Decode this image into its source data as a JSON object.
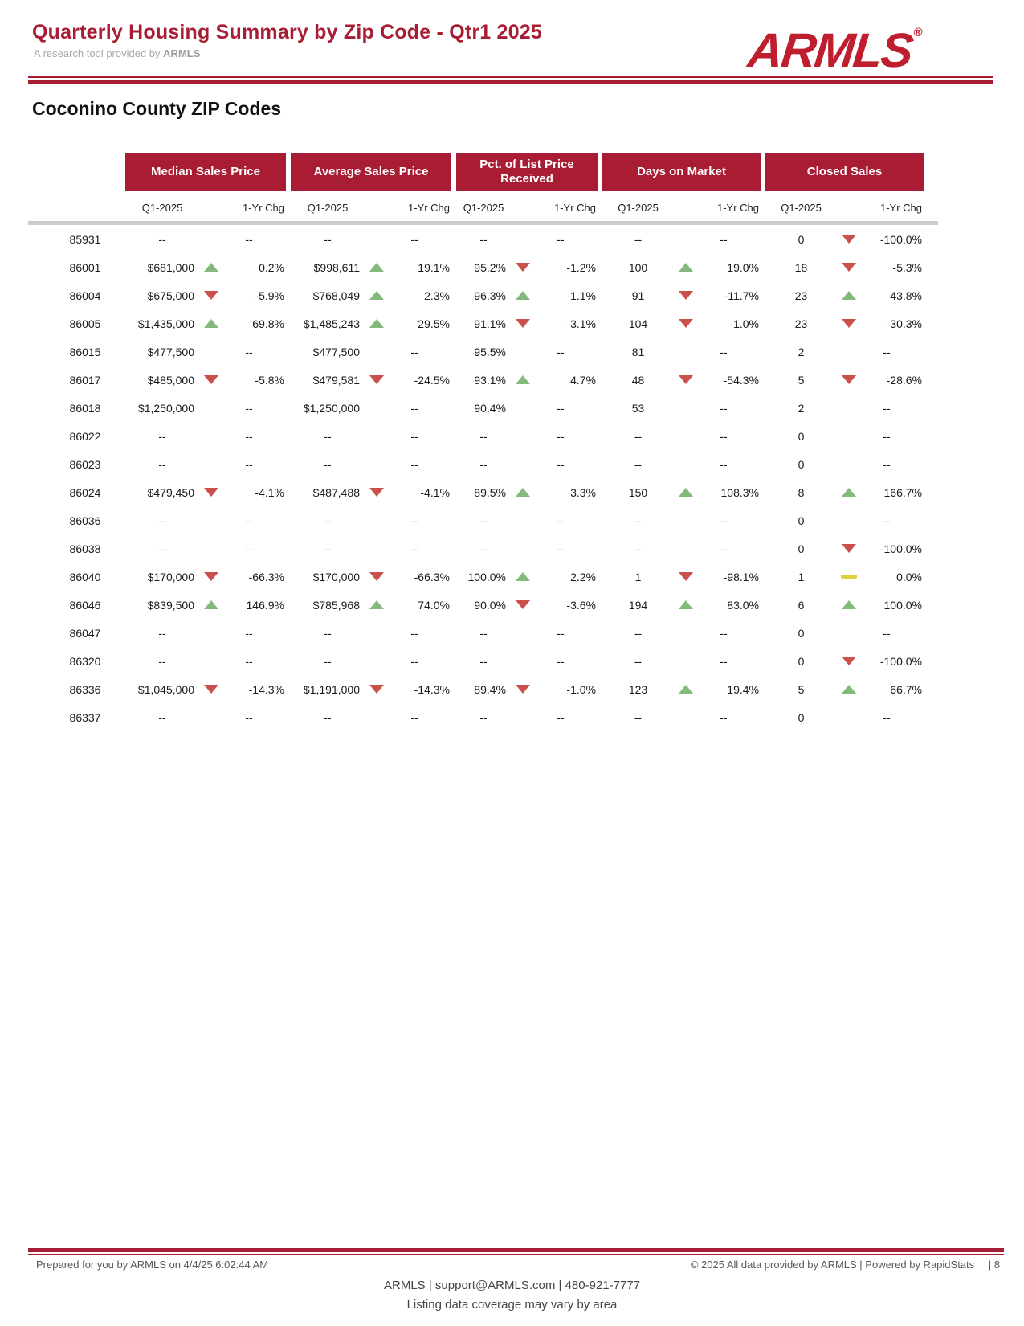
{
  "header": {
    "title": "Quarterly Housing Summary by Zip Code - Qtr1 2025",
    "subtitle_prefix": "A research tool provided by",
    "subtitle_brand": "ARMLS",
    "logo_text": "ARMLS",
    "logo_reg": "®"
  },
  "section_title": "Coconino County ZIP Codes",
  "table": {
    "groups": [
      {
        "label": "Median Sales Price"
      },
      {
        "label": "Average Sales Price"
      },
      {
        "label": "Pct. of List Price Received"
      },
      {
        "label": "Days on Market"
      },
      {
        "label": "Closed Sales"
      }
    ],
    "subheaders": {
      "period": "Q1-2025",
      "change": "1-Yr Chg"
    },
    "rows": [
      {
        "zip": "85931",
        "cells": [
          {
            "v": "--",
            "dir": null,
            "chg": "--"
          },
          {
            "v": "--",
            "dir": null,
            "chg": "--"
          },
          {
            "v": "--",
            "dir": null,
            "chg": "--"
          },
          {
            "v": "--",
            "dir": null,
            "chg": "--"
          },
          {
            "v": "0",
            "dir": "down",
            "chg": "-100.0%"
          }
        ]
      },
      {
        "zip": "86001",
        "cells": [
          {
            "v": "$681,000",
            "dir": "up",
            "chg": "0.2%"
          },
          {
            "v": "$998,611",
            "dir": "up",
            "chg": "19.1%"
          },
          {
            "v": "95.2%",
            "dir": "down",
            "chg": "-1.2%"
          },
          {
            "v": "100",
            "dir": "up",
            "chg": "19.0%"
          },
          {
            "v": "18",
            "dir": "down",
            "chg": "-5.3%"
          }
        ]
      },
      {
        "zip": "86004",
        "cells": [
          {
            "v": "$675,000",
            "dir": "down",
            "chg": "-5.9%"
          },
          {
            "v": "$768,049",
            "dir": "up",
            "chg": "2.3%"
          },
          {
            "v": "96.3%",
            "dir": "up",
            "chg": "1.1%"
          },
          {
            "v": "91",
            "dir": "down",
            "chg": "-11.7%"
          },
          {
            "v": "23",
            "dir": "up",
            "chg": "43.8%"
          }
        ]
      },
      {
        "zip": "86005",
        "cells": [
          {
            "v": "$1,435,000",
            "dir": "up",
            "chg": "69.8%"
          },
          {
            "v": "$1,485,243",
            "dir": "up",
            "chg": "29.5%"
          },
          {
            "v": "91.1%",
            "dir": "down",
            "chg": "-3.1%"
          },
          {
            "v": "104",
            "dir": "down",
            "chg": "-1.0%"
          },
          {
            "v": "23",
            "dir": "down",
            "chg": "-30.3%"
          }
        ]
      },
      {
        "zip": "86015",
        "cells": [
          {
            "v": "$477,500",
            "dir": null,
            "chg": "--"
          },
          {
            "v": "$477,500",
            "dir": null,
            "chg": "--"
          },
          {
            "v": "95.5%",
            "dir": null,
            "chg": "--"
          },
          {
            "v": "81",
            "dir": null,
            "chg": "--"
          },
          {
            "v": "2",
            "dir": null,
            "chg": "--"
          }
        ]
      },
      {
        "zip": "86017",
        "cells": [
          {
            "v": "$485,000",
            "dir": "down",
            "chg": "-5.8%"
          },
          {
            "v": "$479,581",
            "dir": "down",
            "chg": "-24.5%"
          },
          {
            "v": "93.1%",
            "dir": "up",
            "chg": "4.7%"
          },
          {
            "v": "48",
            "dir": "down",
            "chg": "-54.3%"
          },
          {
            "v": "5",
            "dir": "down",
            "chg": "-28.6%"
          }
        ]
      },
      {
        "zip": "86018",
        "cells": [
          {
            "v": "$1,250,000",
            "dir": null,
            "chg": "--"
          },
          {
            "v": "$1,250,000",
            "dir": null,
            "chg": "--"
          },
          {
            "v": "90.4%",
            "dir": null,
            "chg": "--"
          },
          {
            "v": "53",
            "dir": null,
            "chg": "--"
          },
          {
            "v": "2",
            "dir": null,
            "chg": "--"
          }
        ]
      },
      {
        "zip": "86022",
        "cells": [
          {
            "v": "--",
            "dir": null,
            "chg": "--"
          },
          {
            "v": "--",
            "dir": null,
            "chg": "--"
          },
          {
            "v": "--",
            "dir": null,
            "chg": "--"
          },
          {
            "v": "--",
            "dir": null,
            "chg": "--"
          },
          {
            "v": "0",
            "dir": null,
            "chg": "--"
          }
        ]
      },
      {
        "zip": "86023",
        "cells": [
          {
            "v": "--",
            "dir": null,
            "chg": "--"
          },
          {
            "v": "--",
            "dir": null,
            "chg": "--"
          },
          {
            "v": "--",
            "dir": null,
            "chg": "--"
          },
          {
            "v": "--",
            "dir": null,
            "chg": "--"
          },
          {
            "v": "0",
            "dir": null,
            "chg": "--"
          }
        ]
      },
      {
        "zip": "86024",
        "cells": [
          {
            "v": "$479,450",
            "dir": "down",
            "chg": "-4.1%"
          },
          {
            "v": "$487,488",
            "dir": "down",
            "chg": "-4.1%"
          },
          {
            "v": "89.5%",
            "dir": "up",
            "chg": "3.3%"
          },
          {
            "v": "150",
            "dir": "up",
            "chg": "108.3%"
          },
          {
            "v": "8",
            "dir": "up",
            "chg": "166.7%"
          }
        ]
      },
      {
        "zip": "86036",
        "cells": [
          {
            "v": "--",
            "dir": null,
            "chg": "--"
          },
          {
            "v": "--",
            "dir": null,
            "chg": "--"
          },
          {
            "v": "--",
            "dir": null,
            "chg": "--"
          },
          {
            "v": "--",
            "dir": null,
            "chg": "--"
          },
          {
            "v": "0",
            "dir": null,
            "chg": "--"
          }
        ]
      },
      {
        "zip": "86038",
        "cells": [
          {
            "v": "--",
            "dir": null,
            "chg": "--"
          },
          {
            "v": "--",
            "dir": null,
            "chg": "--"
          },
          {
            "v": "--",
            "dir": null,
            "chg": "--"
          },
          {
            "v": "--",
            "dir": null,
            "chg": "--"
          },
          {
            "v": "0",
            "dir": "down",
            "chg": "-100.0%"
          }
        ]
      },
      {
        "zip": "86040",
        "cells": [
          {
            "v": "$170,000",
            "dir": "down",
            "chg": "-66.3%"
          },
          {
            "v": "$170,000",
            "dir": "down",
            "chg": "-66.3%"
          },
          {
            "v": "100.0%",
            "dir": "up",
            "chg": "2.2%"
          },
          {
            "v": "1",
            "dir": "down",
            "chg": "-98.1%"
          },
          {
            "v": "1",
            "dir": "flat",
            "chg": "0.0%"
          }
        ]
      },
      {
        "zip": "86046",
        "cells": [
          {
            "v": "$839,500",
            "dir": "up",
            "chg": "146.9%"
          },
          {
            "v": "$785,968",
            "dir": "up",
            "chg": "74.0%"
          },
          {
            "v": "90.0%",
            "dir": "down",
            "chg": "-3.6%"
          },
          {
            "v": "194",
            "dir": "up",
            "chg": "83.0%"
          },
          {
            "v": "6",
            "dir": "up",
            "chg": "100.0%"
          }
        ]
      },
      {
        "zip": "86047",
        "cells": [
          {
            "v": "--",
            "dir": null,
            "chg": "--"
          },
          {
            "v": "--",
            "dir": null,
            "chg": "--"
          },
          {
            "v": "--",
            "dir": null,
            "chg": "--"
          },
          {
            "v": "--",
            "dir": null,
            "chg": "--"
          },
          {
            "v": "0",
            "dir": null,
            "chg": "--"
          }
        ]
      },
      {
        "zip": "86320",
        "cells": [
          {
            "v": "--",
            "dir": null,
            "chg": "--"
          },
          {
            "v": "--",
            "dir": null,
            "chg": "--"
          },
          {
            "v": "--",
            "dir": null,
            "chg": "--"
          },
          {
            "v": "--",
            "dir": null,
            "chg": "--"
          },
          {
            "v": "0",
            "dir": "down",
            "chg": "-100.0%"
          }
        ]
      },
      {
        "zip": "86336",
        "cells": [
          {
            "v": "$1,045,000",
            "dir": "down",
            "chg": "-14.3%"
          },
          {
            "v": "$1,191,000",
            "dir": "down",
            "chg": "-14.3%"
          },
          {
            "v": "89.4%",
            "dir": "down",
            "chg": "-1.0%"
          },
          {
            "v": "123",
            "dir": "up",
            "chg": "19.4%"
          },
          {
            "v": "5",
            "dir": "up",
            "chg": "66.7%"
          }
        ]
      },
      {
        "zip": "86337",
        "cells": [
          {
            "v": "--",
            "dir": null,
            "chg": "--"
          },
          {
            "v": "--",
            "dir": null,
            "chg": "--"
          },
          {
            "v": "--",
            "dir": null,
            "chg": "--"
          },
          {
            "v": "--",
            "dir": null,
            "chg": "--"
          },
          {
            "v": "0",
            "dir": null,
            "chg": "--"
          }
        ]
      }
    ]
  },
  "footer": {
    "prepared": "Prepared for you by ARMLS on 4/4/25 6:02:44 AM",
    "copyright": "© 2025 All data provided by ARMLS | Powered by RapidStats",
    "page": "| 8",
    "contact": "ARMLS | support@ARMLS.com | 480-921-7777",
    "coverage": "Listing data coverage may vary by area"
  },
  "colors": {
    "accent_red": "#A81D33",
    "logo_red": "#BE1E2D",
    "up_green": "#83BA7C",
    "down_red": "#C9504B",
    "flat_yellow": "#DFCE3E",
    "rule_gray": "#CCCCCC"
  }
}
